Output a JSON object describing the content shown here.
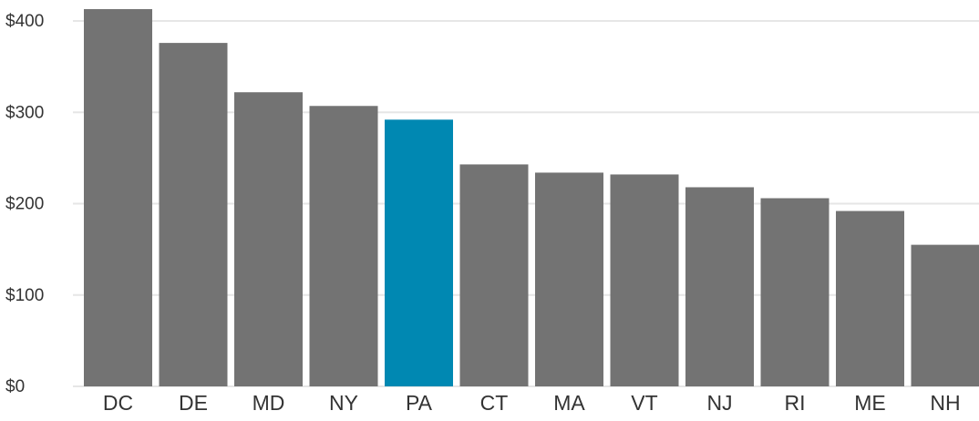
{
  "chart_data": {
    "type": "bar",
    "categories": [
      "DC",
      "DE",
      "MD",
      "NY",
      "PA",
      "CT",
      "MA",
      "VT",
      "NJ",
      "RI",
      "ME",
      "NH"
    ],
    "values": [
      413,
      376,
      322,
      307,
      292,
      243,
      234,
      232,
      218,
      206,
      192,
      155
    ],
    "colors": [
      "#737373",
      "#737373",
      "#737373",
      "#737373",
      "#0088b2",
      "#737373",
      "#737373",
      "#737373",
      "#737373",
      "#737373",
      "#737373",
      "#737373"
    ],
    "ylim": [
      0,
      420
    ],
    "yticks": [
      {
        "value": 0,
        "label": "$0"
      },
      {
        "value": 100,
        "label": "$100"
      },
      {
        "value": 200,
        "label": "$200"
      },
      {
        "value": 300,
        "label": "$300"
      },
      {
        "value": 400,
        "label": "$400"
      }
    ],
    "grid": true
  }
}
